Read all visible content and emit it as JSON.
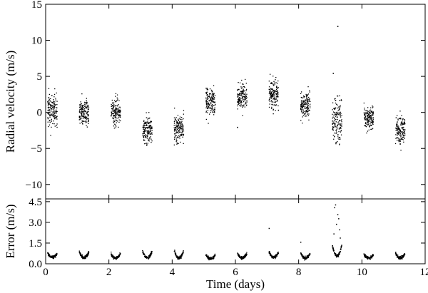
{
  "chart_data": [
    {
      "type": "scatter",
      "panel": "top",
      "xlabel": "",
      "ylabel": "Radial velocity (m/s)",
      "xlim": [
        0,
        12
      ],
      "ylim": [
        -12,
        15
      ],
      "x_ticks": [
        0,
        2,
        4,
        6,
        8,
        10,
        12
      ],
      "x_tick_labels": [
        "0",
        "2",
        "4",
        "6",
        "8",
        "10",
        "12"
      ],
      "show_x_tick_labels": false,
      "y_ticks": [
        -10,
        -5,
        0,
        5,
        10,
        15
      ],
      "y_tick_labels": [
        "−10",
        "−5",
        "0",
        "5",
        "10",
        "15"
      ],
      "grid": false,
      "point_color": "#000000",
      "clusters": [
        {
          "night_start": 0.05,
          "night_end": 0.35,
          "mean": 0.5,
          "spread": 1.5
        },
        {
          "night_start": 1.05,
          "night_end": 1.35,
          "mean": 0.0,
          "spread": 1.3
        },
        {
          "night_start": 2.05,
          "night_end": 2.35,
          "mean": 0.2,
          "spread": 1.2
        },
        {
          "night_start": 3.05,
          "night_end": 3.35,
          "mean": -2.5,
          "spread": 1.3
        },
        {
          "night_start": 4.05,
          "night_end": 4.35,
          "mean": -2.0,
          "spread": 1.4
        },
        {
          "night_start": 5.05,
          "night_end": 5.35,
          "mean": 1.5,
          "spread": 1.2
        },
        {
          "night_start": 6.05,
          "night_end": 6.35,
          "mean": 2.3,
          "spread": 1.1
        },
        {
          "night_start": 7.05,
          "night_end": 7.35,
          "mean": 2.6,
          "spread": 1.3
        },
        {
          "night_start": 8.05,
          "night_end": 8.35,
          "mean": 1.0,
          "spread": 1.2
        },
        {
          "night_start": 9.05,
          "night_end": 9.35,
          "mean": -1.0,
          "spread": 2.0
        },
        {
          "night_start": 10.05,
          "night_end": 10.35,
          "mean": -0.5,
          "spread": 1.1
        },
        {
          "night_start": 11.05,
          "night_end": 11.35,
          "mean": -2.3,
          "spread": 1.3
        }
      ],
      "outliers": [
        {
          "x": 9.22,
          "y": 12.0
        },
        {
          "x": 9.08,
          "y": 5.5
        },
        {
          "x": 6.05,
          "y": -2.0
        }
      ]
    },
    {
      "type": "scatter",
      "panel": "bottom",
      "xlabel": "Time (days)",
      "ylabel": "Error (m/s)",
      "xlim": [
        0,
        12
      ],
      "ylim": [
        0,
        4.7
      ],
      "x_ticks": [
        0,
        2,
        4,
        6,
        8,
        10,
        12
      ],
      "x_tick_labels": [
        "0",
        "2",
        "4",
        "6",
        "8",
        "10",
        "12"
      ],
      "y_ticks": [
        0.0,
        1.5,
        3.0,
        4.5
      ],
      "y_tick_labels": [
        "0.0",
        "1.5",
        "3.0",
        "4.5"
      ],
      "grid": false,
      "point_color": "#000000",
      "clusters": [
        {
          "night_start": 0.05,
          "night_end": 0.35,
          "min_error": 0.5,
          "edge_error": 0.8
        },
        {
          "night_start": 1.05,
          "night_end": 1.35,
          "min_error": 0.5,
          "edge_error": 0.9
        },
        {
          "night_start": 2.05,
          "night_end": 2.35,
          "min_error": 0.45,
          "edge_error": 0.75
        },
        {
          "night_start": 3.05,
          "night_end": 3.35,
          "min_error": 0.5,
          "edge_error": 0.9
        },
        {
          "night_start": 4.05,
          "night_end": 4.35,
          "min_error": 0.45,
          "edge_error": 1.0
        },
        {
          "night_start": 5.05,
          "night_end": 5.35,
          "min_error": 0.4,
          "edge_error": 0.7
        },
        {
          "night_start": 6.05,
          "night_end": 6.35,
          "min_error": 0.45,
          "edge_error": 0.8
        },
        {
          "night_start": 7.05,
          "night_end": 7.35,
          "min_error": 0.5,
          "edge_error": 0.9
        },
        {
          "night_start": 8.05,
          "night_end": 8.35,
          "min_error": 0.45,
          "edge_error": 0.8
        },
        {
          "night_start": 9.05,
          "night_end": 9.35,
          "min_error": 0.6,
          "edge_error": 1.4
        },
        {
          "night_start": 10.05,
          "night_end": 10.35,
          "min_error": 0.45,
          "edge_error": 0.7
        },
        {
          "night_start": 11.05,
          "night_end": 11.35,
          "min_error": 0.45,
          "edge_error": 0.8
        }
      ],
      "outliers": [
        {
          "x": 7.05,
          "y": 2.6
        },
        {
          "x": 9.15,
          "y": 4.3
        },
        {
          "x": 9.12,
          "y": 4.1
        },
        {
          "x": 9.22,
          "y": 3.6
        },
        {
          "x": 9.25,
          "y": 3.3
        },
        {
          "x": 9.18,
          "y": 2.9
        },
        {
          "x": 9.28,
          "y": 2.5
        },
        {
          "x": 9.1,
          "y": 2.2
        },
        {
          "x": 9.3,
          "y": 1.9
        },
        {
          "x": 8.05,
          "y": 1.6
        }
      ]
    }
  ]
}
